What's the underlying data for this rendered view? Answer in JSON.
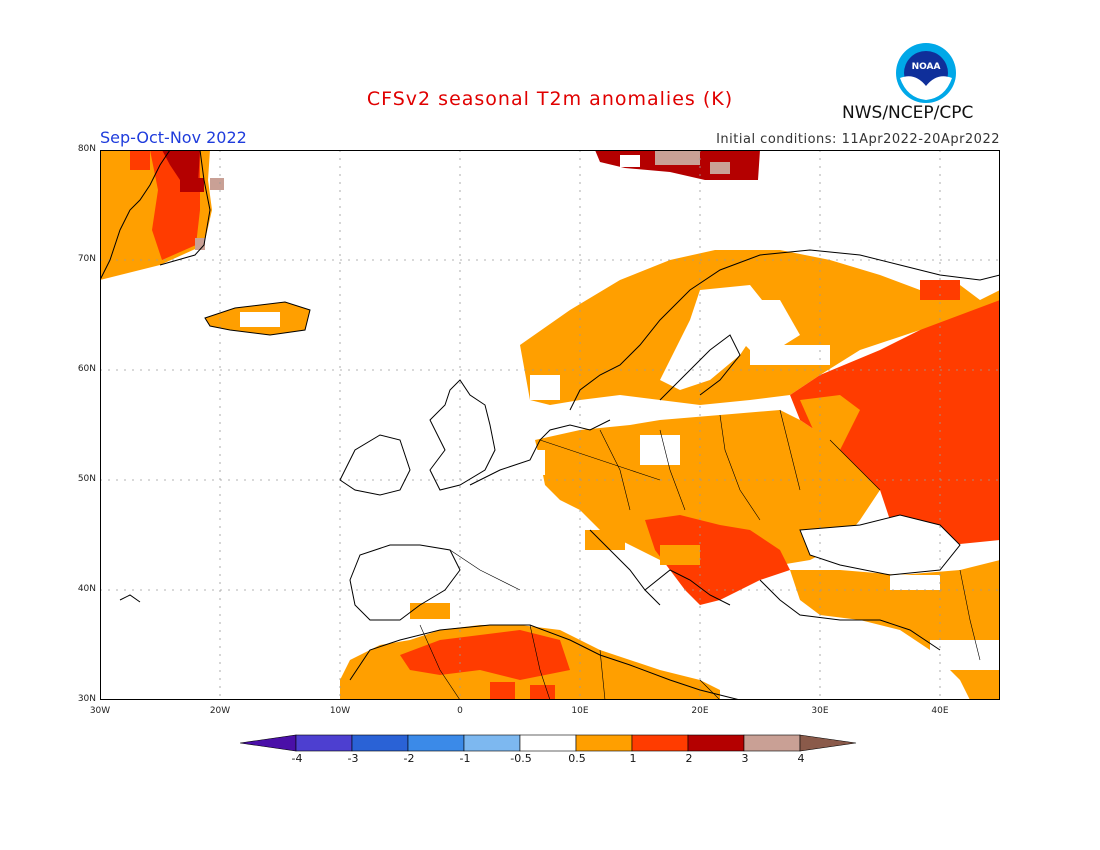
{
  "header": {
    "title": "CFSv2 seasonal T2m anomalies (K)",
    "season": "Sep-Oct-Nov 2022",
    "initial_conditions": "Initial conditions: 11Apr2022-20Apr2022",
    "agency": "NWS/NCEP/CPC",
    "logo_text": "NOAA"
  },
  "map": {
    "lon_range": [
      -30,
      45
    ],
    "lat_range": [
      30,
      80
    ],
    "lat_labels": [
      "80N",
      "70N",
      "60N",
      "50N",
      "40N",
      "30N"
    ],
    "lon_labels": [
      "30W",
      "20W",
      "10W",
      "0",
      "10E",
      "20E",
      "30E",
      "40E"
    ],
    "anomaly_regions": [
      {
        "name": "greenland",
        "category": "1-2"
      },
      {
        "name": "greenland-east-coast",
        "category": "2-3"
      },
      {
        "name": "svalbard",
        "category": "2-3"
      },
      {
        "name": "iceland",
        "category": "0.5-1"
      },
      {
        "name": "scandinavia",
        "category": "0.5-1"
      },
      {
        "name": "central-eastern-europe",
        "category": "0.5-1"
      },
      {
        "name": "western-russia",
        "category": "1-2"
      },
      {
        "name": "balkans",
        "category": "1-2"
      },
      {
        "name": "turkey",
        "category": "0.5-1"
      },
      {
        "name": "north-africa",
        "category": "0.5-1"
      },
      {
        "name": "algeria-central",
        "category": "1-2"
      }
    ]
  },
  "colorbar": {
    "labels": [
      "-4",
      "-3",
      "-2",
      "-1",
      "-0.5",
      "0.5",
      "1",
      "2",
      "3",
      "4"
    ],
    "colors": [
      "#4a0fa8",
      "#4d3fd0",
      "#2a62d6",
      "#3b8ae8",
      "#7db8f0",
      "#ffffff",
      "#ff9f00",
      "#ff3c00",
      "#b40000",
      "#c9a095",
      "#8a5a4a"
    ]
  }
}
